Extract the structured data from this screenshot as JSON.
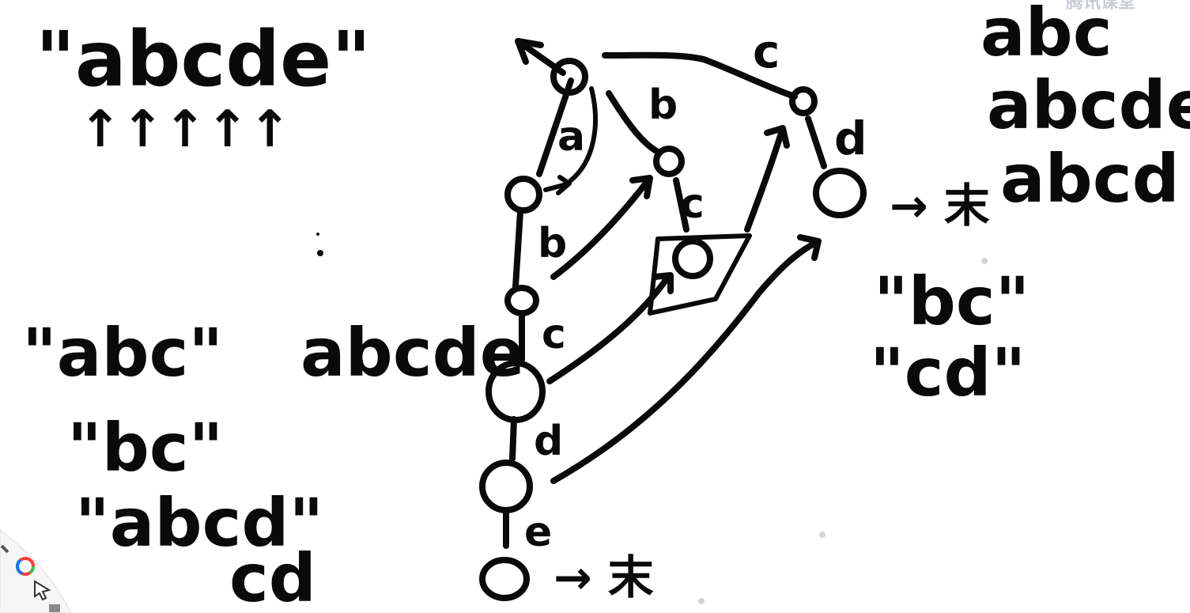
{
  "watermark": {
    "text": "腾讯课堂",
    "color": "#c9ccd3"
  },
  "pattern_list": {
    "top_string": "\"abcde\"",
    "arrows": "↑↑↑↑↑",
    "items": [
      "\"abc\"",
      "\"bc\"",
      "\"abcd\"",
      "cd"
    ],
    "inline_word": "abcde"
  },
  "trie": {
    "edges": {
      "a": "a",
      "b_left": "b",
      "c_left": "c",
      "d_left": "d",
      "e_left": "e",
      "b_right": "b",
      "c_mid": "c",
      "c_top": "c",
      "d_right": "d"
    },
    "end_marks": {
      "bottom": "→ 末",
      "right": "→ 末"
    }
  },
  "right_list": {
    "words": [
      "abc",
      "abcde",
      "abcd"
    ],
    "matches": [
      "\"bc\"",
      "\"cd\""
    ]
  },
  "toolbar": {
    "color_wheel_icon": "color-wheel-icon",
    "pointer_icon": "pointer-icon"
  }
}
